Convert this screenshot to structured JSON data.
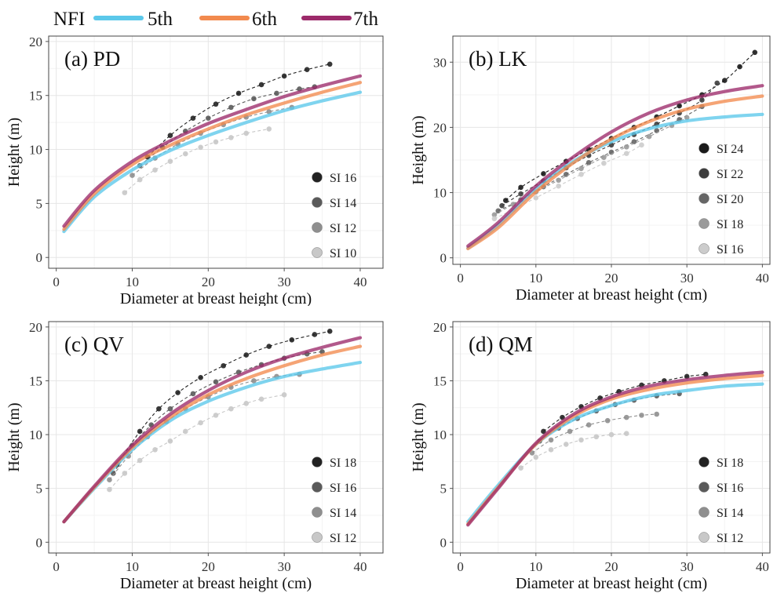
{
  "legend": {
    "title": "NFI",
    "items": [
      {
        "label": "5th",
        "color": "#5bc8ea"
      },
      {
        "label": "6th",
        "color": "#f28a4e"
      },
      {
        "label": "7th",
        "color": "#9c2a6a"
      }
    ]
  },
  "chart_data": [
    {
      "type": "line",
      "title": "(a) PD",
      "xlabel": "Diameter at breast height (cm)",
      "ylabel": "Height (m)",
      "xlim": [
        -1,
        43
      ],
      "ylim": [
        -1,
        20.5
      ],
      "xticks": [
        0,
        10,
        20,
        30,
        40
      ],
      "yticks": [
        0,
        5,
        10,
        15,
        20
      ],
      "grid": true,
      "series": [
        {
          "name": "5th",
          "x": [
            1,
            5,
            10,
            15,
            20,
            25,
            30,
            35,
            40
          ],
          "y": [
            2.4,
            5.6,
            8.1,
            9.9,
            11.3,
            12.5,
            13.6,
            14.5,
            15.3
          ]
        },
        {
          "name": "6th",
          "x": [
            1,
            5,
            10,
            15,
            20,
            25,
            30,
            35,
            40
          ],
          "y": [
            2.6,
            5.9,
            8.6,
            10.4,
            11.9,
            13.2,
            14.3,
            15.3,
            16.2
          ]
        },
        {
          "name": "7th",
          "x": [
            1,
            5,
            10,
            15,
            20,
            25,
            30,
            35,
            40
          ],
          "y": [
            2.9,
            6.2,
            8.9,
            10.8,
            12.4,
            13.7,
            14.9,
            15.9,
            16.8
          ]
        }
      ],
      "site_index_curves": [
        {
          "name": "SI 16",
          "color": "#222222",
          "x": [
            12,
            15,
            18,
            21,
            24,
            27,
            30,
            33,
            36
          ],
          "y": [
            9.3,
            11.3,
            12.9,
            14.2,
            15.2,
            16.0,
            16.8,
            17.4,
            17.9
          ]
        },
        {
          "name": "SI 14",
          "color": "#5a5a5a",
          "x": [
            11,
            14,
            17,
            20,
            23,
            26,
            29,
            32,
            34
          ],
          "y": [
            8.5,
            10.2,
            11.7,
            12.9,
            13.9,
            14.7,
            15.2,
            15.6,
            15.8
          ]
        },
        {
          "name": "SI 12",
          "color": "#8f8f8f",
          "x": [
            10,
            13,
            16,
            19,
            22,
            25,
            28,
            31
          ],
          "y": [
            7.6,
            9.2,
            10.5,
            11.5,
            12.3,
            13.0,
            13.5,
            13.9
          ]
        },
        {
          "name": "SI 10",
          "color": "#c8c8c8",
          "x": [
            9,
            11,
            13,
            15,
            17,
            19,
            21,
            23,
            25,
            28
          ],
          "y": [
            6.0,
            7.2,
            8.1,
            8.9,
            9.6,
            10.2,
            10.7,
            11.1,
            11.5,
            11.9
          ]
        }
      ]
    },
    {
      "type": "line",
      "title": "(b) LK",
      "xlabel": "Diameter at breast height (cm)",
      "ylabel": "Height (m)",
      "xlim": [
        -1,
        41
      ],
      "ylim": [
        -1,
        34
      ],
      "xticks": [
        0,
        10,
        20,
        30,
        40
      ],
      "yticks": [
        0,
        10,
        20,
        30
      ],
      "grid": true,
      "series": [
        {
          "name": "5th",
          "x": [
            1,
            5,
            10,
            15,
            20,
            25,
            30,
            35,
            40
          ],
          "y": [
            1.5,
            5.0,
            10.6,
            14.8,
            17.8,
            19.8,
            21.0,
            21.6,
            22.0
          ]
        },
        {
          "name": "6th",
          "x": [
            1,
            5,
            10,
            15,
            20,
            25,
            30,
            35,
            40
          ],
          "y": [
            1.4,
            4.6,
            10.1,
            14.6,
            18.2,
            20.9,
            22.8,
            24.0,
            24.8
          ]
        },
        {
          "name": "7th",
          "x": [
            1,
            5,
            10,
            15,
            20,
            25,
            30,
            35,
            40
          ],
          "y": [
            1.8,
            5.4,
            11.0,
            15.5,
            19.3,
            22.2,
            24.2,
            25.5,
            26.4
          ]
        }
      ],
      "site_index_curves": [
        {
          "name": "SI 24",
          "color": "#1a1a1a",
          "x": [
            6,
            8,
            11,
            14,
            17,
            20,
            23,
            26,
            29,
            32,
            35,
            37,
            39
          ],
          "y": [
            8.8,
            10.8,
            12.9,
            14.8,
            16.6,
            18.3,
            20.0,
            21.6,
            23.3,
            25.0,
            27.2,
            29.3,
            31.5
          ]
        },
        {
          "name": "SI 22",
          "color": "#3d3d3d",
          "x": [
            5.5,
            8,
            11,
            14,
            17,
            20,
            23,
            26,
            29,
            32,
            34
          ],
          "y": [
            8.0,
            9.8,
            11.8,
            13.8,
            15.7,
            17.3,
            18.9,
            20.5,
            22.2,
            24.2,
            26.8
          ]
        },
        {
          "name": "SI 20",
          "color": "#666666",
          "x": [
            5,
            8,
            11,
            14,
            17,
            20,
            23,
            26,
            29,
            32
          ],
          "y": [
            7.2,
            8.9,
            10.9,
            12.8,
            14.6,
            16.2,
            17.8,
            19.5,
            21.2,
            23.2
          ]
        },
        {
          "name": "SI 18",
          "color": "#9a9a9a",
          "x": [
            4.5,
            7,
            10,
            13,
            16,
            19,
            22,
            25,
            28,
            30
          ],
          "y": [
            6.6,
            8.2,
            10.1,
            11.9,
            13.7,
            15.4,
            17.0,
            18.6,
            20.3,
            21.5
          ]
        },
        {
          "name": "SI 16",
          "color": "#cccccc",
          "x": [
            4.5,
            7,
            10,
            13,
            16,
            19,
            22,
            24
          ],
          "y": [
            6.0,
            7.4,
            9.2,
            11.0,
            12.8,
            14.5,
            16.0,
            17.3
          ]
        }
      ]
    },
    {
      "type": "line",
      "title": "(c) QV",
      "xlabel": "Diameter at breast height (cm)",
      "ylabel": "Height (m)",
      "xlim": [
        -1,
        43
      ],
      "ylim": [
        -1,
        20.5
      ],
      "xticks": [
        0,
        10,
        20,
        30,
        40
      ],
      "yticks": [
        0,
        5,
        10,
        15,
        20
      ],
      "grid": true,
      "series": [
        {
          "name": "5th",
          "x": [
            1,
            5,
            10,
            15,
            20,
            25,
            30,
            35,
            40
          ],
          "y": [
            1.9,
            5.0,
            8.6,
            11.3,
            13.1,
            14.4,
            15.4,
            16.1,
            16.7
          ]
        },
        {
          "name": "6th",
          "x": [
            1,
            5,
            10,
            15,
            20,
            25,
            30,
            35,
            40
          ],
          "y": [
            1.9,
            5.1,
            8.8,
            11.6,
            13.7,
            15.2,
            16.4,
            17.4,
            18.2
          ]
        },
        {
          "name": "7th",
          "x": [
            1,
            5,
            10,
            15,
            20,
            25,
            30,
            35,
            40
          ],
          "y": [
            1.9,
            5.2,
            9.0,
            11.9,
            14.1,
            15.8,
            17.1,
            18.1,
            19.0
          ]
        }
      ],
      "site_index_curves": [
        {
          "name": "SI 18",
          "color": "#222222",
          "x": [
            8,
            11,
            13.5,
            16,
            19,
            22,
            25,
            28,
            31,
            34,
            36
          ],
          "y": [
            7.2,
            10.3,
            12.4,
            13.9,
            15.3,
            16.4,
            17.4,
            18.2,
            18.8,
            19.3,
            19.6
          ]
        },
        {
          "name": "SI 16",
          "color": "#5a5a5a",
          "x": [
            7.5,
            10,
            12.5,
            15,
            18,
            21,
            24,
            27,
            30,
            33,
            35
          ],
          "y": [
            6.4,
            9.0,
            10.9,
            12.4,
            13.8,
            14.9,
            15.8,
            16.5,
            17.1,
            17.5,
            17.7
          ]
        },
        {
          "name": "SI 14",
          "color": "#8f8f8f",
          "x": [
            7,
            9.5,
            12,
            14.5,
            17,
            20,
            23,
            26,
            29,
            32
          ],
          "y": [
            5.8,
            8.0,
            9.8,
            11.2,
            12.4,
            13.5,
            14.4,
            15.0,
            15.4,
            15.6
          ]
        },
        {
          "name": "SI 12",
          "color": "#c8c8c8",
          "x": [
            7,
            9,
            11,
            13,
            15,
            17,
            19,
            21,
            23,
            25,
            27,
            30
          ],
          "y": [
            4.9,
            6.4,
            7.6,
            8.6,
            9.4,
            10.3,
            11.1,
            11.8,
            12.4,
            12.9,
            13.3,
            13.7
          ]
        }
      ]
    },
    {
      "type": "line",
      "title": "(d) QM",
      "xlabel": "Diameter at breast height (cm)",
      "ylabel": "Height (m)",
      "xlim": [
        -1,
        41
      ],
      "ylim": [
        -1,
        20.5
      ],
      "xticks": [
        0,
        10,
        20,
        30,
        40
      ],
      "yticks": [
        0,
        5,
        10,
        15,
        20
      ],
      "grid": true,
      "series": [
        {
          "name": "5th",
          "x": [
            1,
            5,
            10,
            15,
            20,
            25,
            30,
            35,
            40
          ],
          "y": [
            1.9,
            5.3,
            9.1,
            11.4,
            12.7,
            13.6,
            14.1,
            14.5,
            14.7
          ]
        },
        {
          "name": "6th",
          "x": [
            1,
            5,
            10,
            15,
            20,
            25,
            30,
            35,
            40
          ],
          "y": [
            1.7,
            5.1,
            9.1,
            11.7,
            13.3,
            14.2,
            14.8,
            15.2,
            15.5
          ]
        },
        {
          "name": "7th",
          "x": [
            1,
            5,
            10,
            15,
            20,
            25,
            30,
            35,
            40
          ],
          "y": [
            1.6,
            5.0,
            9.2,
            11.9,
            13.5,
            14.5,
            15.1,
            15.5,
            15.8
          ]
        }
      ],
      "site_index_curves": [
        {
          "name": "SI 18",
          "color": "#222222",
          "x": [
            11,
            13.5,
            16,
            18.5,
            21,
            24,
            27,
            30,
            32.5
          ],
          "y": [
            10.3,
            11.6,
            12.6,
            13.4,
            14.0,
            14.6,
            15.0,
            15.4,
            15.6
          ]
        },
        {
          "name": "SI 16",
          "color": "#5a5a5a",
          "x": [
            10.5,
            13,
            15.5,
            18,
            20.5,
            23,
            26,
            29
          ],
          "y": [
            9.4,
            10.6,
            11.5,
            12.2,
            12.8,
            13.2,
            13.6,
            13.8
          ]
        },
        {
          "name": "SI 14",
          "color": "#8f8f8f",
          "x": [
            9.5,
            12,
            14.5,
            17,
            19.5,
            22,
            24,
            26
          ],
          "y": [
            8.3,
            9.5,
            10.3,
            10.9,
            11.3,
            11.6,
            11.8,
            11.9
          ]
        },
        {
          "name": "SI 12",
          "color": "#c8c8c8",
          "x": [
            8,
            10,
            12,
            14,
            16,
            18,
            20,
            22
          ],
          "y": [
            6.9,
            7.9,
            8.6,
            9.1,
            9.5,
            9.8,
            10.0,
            10.1
          ]
        }
      ]
    }
  ]
}
